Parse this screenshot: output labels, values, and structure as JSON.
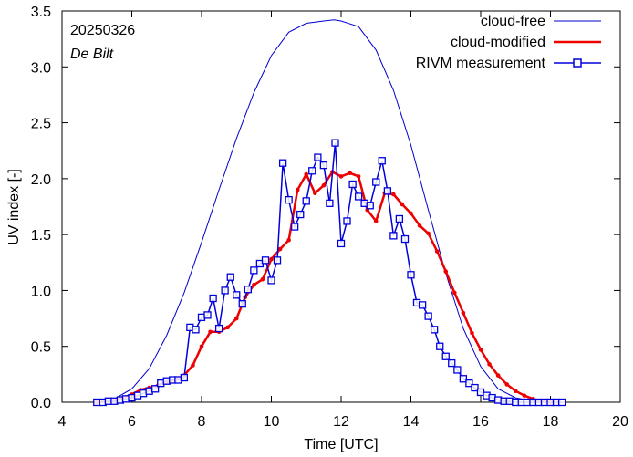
{
  "chart_data": {
    "type": "line",
    "annotations": {
      "date": "20250326",
      "location": "De Bilt"
    },
    "xlabel": "Time  [UTC]",
    "ylabel": "UV index  [-]",
    "xlim": [
      4,
      20
    ],
    "ylim": [
      0,
      3.5
    ],
    "xticks": [
      4,
      6,
      8,
      10,
      12,
      14,
      16,
      18,
      20
    ],
    "yticks": [
      0.0,
      0.5,
      1.0,
      1.5,
      2.0,
      2.5,
      3.0,
      3.5
    ],
    "xtick_labels": [
      "4",
      "6",
      "8",
      "10",
      "12",
      "14",
      "16",
      "18",
      "20"
    ],
    "ytick_labels": [
      "0.0",
      "0.5",
      "1.0",
      "1.5",
      "2.0",
      "2.5",
      "3.0",
      "3.5"
    ],
    "legend_position": "top-right",
    "colors": {
      "clear": "#0000cc",
      "modified": "#ee0000",
      "measured": "#0000dd"
    },
    "series": [
      {
        "name": "cloud-free",
        "style": "thin-line",
        "x": [
          5.0,
          5.5,
          6.0,
          6.5,
          7.0,
          7.5,
          8.0,
          8.5,
          9.0,
          9.5,
          10.0,
          10.5,
          11.0,
          11.5,
          11.8,
          12.0,
          12.5,
          13.0,
          13.5,
          14.0,
          14.5,
          15.0,
          15.5,
          16.0,
          16.5,
          17.0,
          17.5,
          18.0,
          18.3
        ],
        "y": [
          0.0,
          0.03,
          0.12,
          0.3,
          0.6,
          0.98,
          1.43,
          1.9,
          2.36,
          2.77,
          3.1,
          3.31,
          3.39,
          3.41,
          3.42,
          3.41,
          3.36,
          3.15,
          2.79,
          2.3,
          1.72,
          1.15,
          0.66,
          0.32,
          0.12,
          0.04,
          0.01,
          0.0,
          0.0
        ]
      },
      {
        "name": "cloud-modified",
        "style": "thick-line-dots",
        "x": [
          5.0,
          5.25,
          5.5,
          5.75,
          6.0,
          6.25,
          6.5,
          6.75,
          7.0,
          7.25,
          7.5,
          7.75,
          8.0,
          8.25,
          8.5,
          8.75,
          9.0,
          9.25,
          9.5,
          9.75,
          10.0,
          10.25,
          10.5,
          10.75,
          11.0,
          11.25,
          11.5,
          11.75,
          12.0,
          12.25,
          12.5,
          12.75,
          13.0,
          13.25,
          13.5,
          13.75,
          14.0,
          14.25,
          14.5,
          14.75,
          15.0,
          15.25,
          15.5,
          15.75,
          16.0,
          16.25,
          16.5,
          16.75,
          17.0,
          17.25,
          17.5,
          17.75,
          18.0,
          18.25
        ],
        "y": [
          0.0,
          0.01,
          0.02,
          0.04,
          0.07,
          0.11,
          0.13,
          0.15,
          0.18,
          0.2,
          0.24,
          0.33,
          0.5,
          0.63,
          0.63,
          0.67,
          0.75,
          0.94,
          1.05,
          1.1,
          1.28,
          1.37,
          1.45,
          1.9,
          2.04,
          1.87,
          1.94,
          2.06,
          2.02,
          2.05,
          2.02,
          1.72,
          1.62,
          1.87,
          1.86,
          1.77,
          1.69,
          1.58,
          1.51,
          1.35,
          1.17,
          0.98,
          0.8,
          0.62,
          0.47,
          0.34,
          0.24,
          0.16,
          0.1,
          0.06,
          0.03,
          0.01,
          0.0,
          0.0
        ]
      },
      {
        "name": "RIVM measurement",
        "style": "line-squares",
        "x": [
          5.0,
          5.17,
          5.33,
          5.5,
          5.67,
          5.83,
          6.0,
          6.17,
          6.33,
          6.5,
          6.67,
          6.83,
          7.0,
          7.17,
          7.33,
          7.5,
          7.67,
          7.83,
          8.0,
          8.17,
          8.33,
          8.5,
          8.67,
          8.83,
          9.0,
          9.17,
          9.33,
          9.5,
          9.67,
          9.83,
          10.0,
          10.17,
          10.33,
          10.5,
          10.67,
          10.83,
          11.0,
          11.17,
          11.33,
          11.5,
          11.67,
          11.83,
          12.0,
          12.17,
          12.33,
          12.5,
          12.67,
          12.83,
          13.0,
          13.17,
          13.33,
          13.5,
          13.67,
          13.83,
          14.0,
          14.17,
          14.33,
          14.5,
          14.67,
          14.83,
          15.0,
          15.17,
          15.33,
          15.5,
          15.67,
          15.83,
          16.0,
          16.17,
          16.33,
          16.5,
          16.67,
          16.83,
          17.0,
          17.17,
          17.33,
          17.5,
          17.67,
          17.83,
          18.0,
          18.17,
          18.33
        ],
        "y": [
          0.0,
          0.0,
          0.01,
          0.01,
          0.02,
          0.03,
          0.04,
          0.06,
          0.08,
          0.1,
          0.12,
          0.17,
          0.19,
          0.2,
          0.2,
          0.22,
          0.67,
          0.65,
          0.76,
          0.78,
          0.93,
          0.66,
          1.0,
          1.12,
          0.96,
          0.88,
          1.01,
          1.18,
          1.24,
          1.27,
          1.09,
          1.27,
          2.14,
          1.81,
          1.57,
          1.68,
          1.8,
          2.07,
          2.19,
          2.12,
          1.78,
          2.32,
          1.42,
          1.62,
          1.95,
          1.84,
          1.78,
          1.76,
          1.97,
          2.16,
          1.89,
          1.49,
          1.64,
          1.46,
          1.14,
          0.89,
          0.87,
          0.77,
          0.65,
          0.5,
          0.41,
          0.35,
          0.29,
          0.21,
          0.17,
          0.13,
          0.09,
          0.06,
          0.04,
          0.02,
          0.01,
          0.01,
          0.0,
          0.0,
          0.0,
          0.0,
          0.0,
          0.0,
          0.0,
          0.0,
          0.0
        ]
      }
    ]
  }
}
